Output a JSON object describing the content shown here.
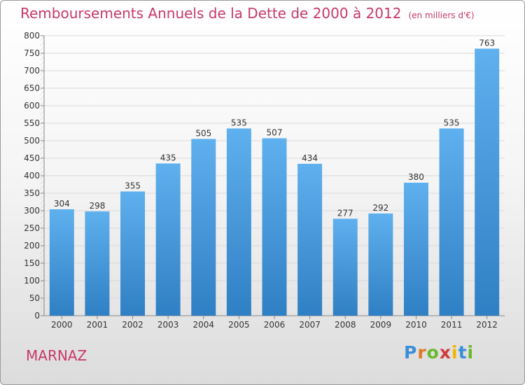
{
  "chart_data": {
    "type": "bar",
    "title": "Remboursements Annuels de la Dette de 2000 à 2012",
    "unit_note": "(en milliers d'€)",
    "categories": [
      "2000",
      "2001",
      "2002",
      "2003",
      "2004",
      "2005",
      "2006",
      "2007",
      "2008",
      "2009",
      "2010",
      "2011",
      "2012"
    ],
    "values": [
      304,
      298,
      355,
      435,
      505,
      535,
      507,
      434,
      277,
      292,
      380,
      535,
      763
    ],
    "ylim": [
      0,
      800
    ],
    "ytick_step": 50,
    "xlabel": "",
    "ylabel": "",
    "grid": true,
    "bar_color": "#4a9ee0"
  },
  "footer": {
    "city": "MARNAZ",
    "logo_letters": [
      {
        "ch": "P",
        "color": "#3a8fd8"
      },
      {
        "ch": "r",
        "color": "#e07a20"
      },
      {
        "ch": "o",
        "color": "#6ab82e"
      },
      {
        "ch": "x",
        "color": "#d23a3a"
      },
      {
        "ch": "i",
        "color": "#f2b600"
      },
      {
        "ch": "t",
        "color": "#3a8fd8"
      },
      {
        "ch": "i",
        "color": "#6ab82e"
      }
    ]
  }
}
